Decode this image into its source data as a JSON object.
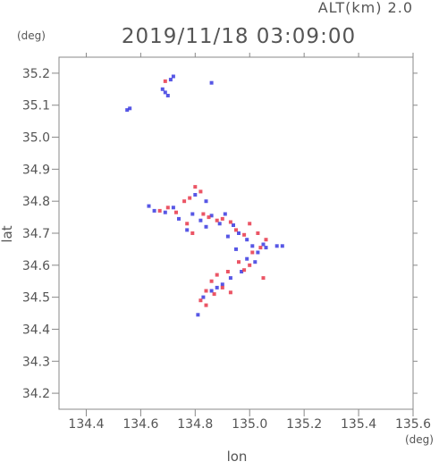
{
  "chart_data": {
    "type": "scatter",
    "title": "2019/11/18 03:09:00",
    "subtitle": "ALT(km) 2.0",
    "xlabel": "lon",
    "ylabel": "lat",
    "x_unit": "(deg)",
    "y_unit": "(deg)",
    "xlim": [
      134.3,
      135.6
    ],
    "ylim": [
      34.15,
      35.25
    ],
    "x_ticks": [
      134.4,
      134.6,
      134.8,
      135.0,
      135.2,
      135.4,
      135.6
    ],
    "x_tick_labels": [
      "134.4",
      "134.6",
      "134.8",
      "135.0",
      "135.2",
      "135.4",
      "135.6"
    ],
    "y_ticks": [
      34.2,
      34.3,
      34.4,
      34.5,
      34.6,
      34.7,
      34.8,
      34.9,
      35.0,
      35.1,
      35.2
    ],
    "y_tick_labels": [
      "34.2",
      "34.3",
      "34.4",
      "34.5",
      "34.6",
      "34.7",
      "34.8",
      "34.9",
      "35.0",
      "35.1",
      "35.2"
    ],
    "grid": false,
    "colors": {
      "approaching": "#e8374a",
      "receding": "#3a3ae0",
      "axis": "#888888",
      "text": "#555555"
    },
    "series": [
      {
        "color": "#3a3ae0",
        "points": [
          [
            134.55,
            35.085
          ],
          [
            134.56,
            35.09
          ],
          [
            134.69,
            35.14
          ],
          [
            134.7,
            35.13
          ],
          [
            134.71,
            35.18
          ],
          [
            134.72,
            35.19
          ],
          [
            134.68,
            35.15
          ],
          [
            134.86,
            35.17
          ],
          [
            134.63,
            34.785
          ],
          [
            134.65,
            34.77
          ],
          [
            134.69,
            34.765
          ],
          [
            134.72,
            34.78
          ],
          [
            134.79,
            34.76
          ],
          [
            134.82,
            34.74
          ],
          [
            134.84,
            34.72
          ],
          [
            134.86,
            34.755
          ],
          [
            134.89,
            34.73
          ],
          [
            134.91,
            34.76
          ],
          [
            134.94,
            34.725
          ],
          [
            134.96,
            34.7
          ],
          [
            134.99,
            34.68
          ],
          [
            135.01,
            34.66
          ],
          [
            135.03,
            34.64
          ],
          [
            135.05,
            34.665
          ],
          [
            135.02,
            34.61
          ],
          [
            134.99,
            34.62
          ],
          [
            134.97,
            34.58
          ],
          [
            134.93,
            34.56
          ],
          [
            134.9,
            34.54
          ],
          [
            134.86,
            34.52
          ],
          [
            134.83,
            34.5
          ],
          [
            134.88,
            34.53
          ],
          [
            134.81,
            34.445
          ],
          [
            135.1,
            34.66
          ],
          [
            135.12,
            34.66
          ],
          [
            134.77,
            34.71
          ],
          [
            134.74,
            34.745
          ],
          [
            134.92,
            34.69
          ],
          [
            134.95,
            34.65
          ],
          [
            134.84,
            34.8
          ],
          [
            134.8,
            34.82
          ],
          [
            135.06,
            34.655
          ]
        ]
      },
      {
        "color": "#e8374a",
        "points": [
          [
            134.69,
            35.175
          ],
          [
            134.67,
            34.77
          ],
          [
            134.7,
            34.78
          ],
          [
            134.73,
            34.765
          ],
          [
            134.78,
            34.81
          ],
          [
            134.8,
            34.845
          ],
          [
            134.82,
            34.83
          ],
          [
            134.76,
            34.8
          ],
          [
            134.83,
            34.76
          ],
          [
            134.85,
            34.75
          ],
          [
            134.88,
            34.74
          ],
          [
            134.9,
            34.745
          ],
          [
            134.93,
            34.735
          ],
          [
            134.95,
            34.71
          ],
          [
            134.98,
            34.695
          ],
          [
            135.0,
            34.73
          ],
          [
            135.03,
            34.7
          ],
          [
            135.06,
            34.68
          ],
          [
            135.04,
            34.655
          ],
          [
            135.01,
            34.64
          ],
          [
            135.0,
            34.6
          ],
          [
            134.96,
            34.61
          ],
          [
            134.92,
            34.58
          ],
          [
            134.88,
            34.57
          ],
          [
            134.86,
            34.55
          ],
          [
            134.84,
            34.52
          ],
          [
            134.87,
            34.51
          ],
          [
            134.82,
            34.49
          ],
          [
            134.84,
            34.475
          ],
          [
            134.9,
            34.53
          ],
          [
            134.93,
            34.515
          ],
          [
            135.05,
            34.56
          ],
          [
            134.98,
            34.585
          ],
          [
            134.77,
            34.73
          ],
          [
            134.79,
            34.7
          ]
        ]
      }
    ]
  }
}
